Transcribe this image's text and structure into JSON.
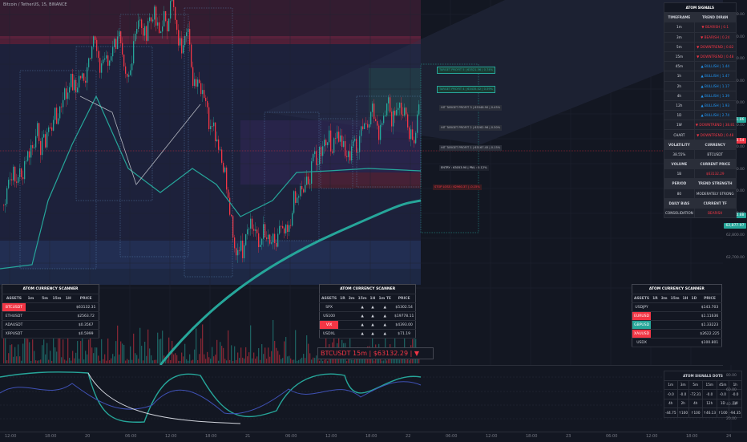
{
  "header": {
    "symbol_title": "Bitcoin / TetherUS, 15, BINANCE"
  },
  "price_axis": {
    "ticks": [
      "63,800.00",
      "63,700.00",
      "63,600.00",
      "63,500.00",
      "63,400.00",
      "63,300.00",
      "63,200.00",
      "63,100.00",
      "63,000.00",
      "62,900.00",
      "62,800.00",
      "62,700.00"
    ],
    "badges": [
      {
        "label": "63,451.86",
        "color": "#26a69a"
      },
      {
        "label": "63,240.54",
        "color": "#f23645"
      },
      {
        "label": "63,100.88",
        "color": "#26a69a"
      },
      {
        "label": "62,877.97",
        "color": "#26a69a"
      }
    ],
    "osc_ticks": [
      "80.00",
      "60.00",
      "40.00",
      "20.00"
    ]
  },
  "time_axis": {
    "ticks": [
      "12:00",
      "18:00",
      "20",
      "06:00",
      "12:00",
      "18:00",
      "21",
      "06:00",
      "12:00",
      "18:00",
      "22",
      "06:00",
      "12:00",
      "18:00",
      "23",
      "06:00",
      "12:00",
      "18:00",
      "24"
    ]
  },
  "signals": {
    "title": "ATOM SIGNALS",
    "col_tf": "TIMEFRAME",
    "col_dir": "TREND DIRAN",
    "rows": [
      {
        "tf": "1m",
        "dir": "▼ BEARISH | 0.1",
        "bear": true
      },
      {
        "tf": "3m",
        "dir": "▼ BEARISH | 0.24",
        "bear": true
      },
      {
        "tf": "5m",
        "dir": "▼ DOWNTREND | 0.82",
        "bear": true
      },
      {
        "tf": "15m",
        "dir": "▼ DOWNTREND | 0.48",
        "bear": true
      },
      {
        "tf": "45m",
        "dir": "▲ BULLISH | 1.44",
        "bear": false
      },
      {
        "tf": "1h",
        "dir": "▲ BULLISH | 1.47",
        "bear": false
      },
      {
        "tf": "2h",
        "dir": "▲ BULLISH | 1.17",
        "bear": false
      },
      {
        "tf": "4h",
        "dir": "▲ BULLISH | 1.39",
        "bear": false
      },
      {
        "tf": "12h",
        "dir": "▲ BULLISH | 1.93",
        "bear": false
      },
      {
        "tf": "1D",
        "dir": "▲ BULLISH | 2.74",
        "bear": false
      },
      {
        "tf": "1W",
        "dir": "▼ DOWNTREND | 38.81",
        "bear": true
      },
      {
        "tf": "CHART",
        "dir": "▼ DOWNTREND | 0.48",
        "bear": true
      }
    ],
    "volatility_label": "VOLATILITY",
    "currency_label": "CURRENCY",
    "volatility": "38.55%",
    "currency": "BTCUSDT",
    "volume_label": "VOLUME",
    "current_price_label": "CURRENT PRICE",
    "volume": "1B",
    "current_price": "$63132.29",
    "period_label": "PERIOD",
    "strength_label": "TREND STRENGTH",
    "period": "80",
    "strength": "MODERATELY STRONG",
    "bias_label": "DAILY BIAS",
    "current_tf_label": "CURRENT TF",
    "bias": "CONSOLIDATION",
    "current_tf": "BEARISH"
  },
  "targets": [
    {
      "text": "TARGET PROFIT 5 | 63521.56 | 0.74%",
      "cls": "tgt-g"
    },
    {
      "text": "TARGET PROFIT 4 | 63435.02 | 0.59%",
      "cls": "tgt-g"
    },
    {
      "text": "HIT TARGET PROFIT 3 | 63348.90 | 0.45%",
      "cls": "tgt-s"
    },
    {
      "text": "HIT TARGET PROFIT 2 | 63262.96 | 0.30%",
      "cls": "tgt-s"
    },
    {
      "text": "HIT TARGET PROFIT 1 | 63167.45 | 0.15%",
      "cls": "tgt-s"
    },
    {
      "text": "ENTRY : 63053.90 | PNL : 0.12%",
      "cls": "tgt-e"
    },
    {
      "text": "STOP LOSS : 62960.37 | -0.15%",
      "cls": "tgt-r"
    }
  ],
  "scanner_left": {
    "title": "ATOM CURRENCY SCANNER",
    "cols": [
      "ASSETS",
      "1m",
      "",
      "5m",
      "15m",
      "1H",
      "PRICE"
    ],
    "rows": [
      {
        "asset": "BTCUSDT",
        "c1": "",
        "c2": "",
        "c3": "",
        "c4": "",
        "c5": "",
        "price": "$63132.31",
        "dn": true,
        "red": true
      },
      {
        "asset": "ETHUSDT",
        "c1": "",
        "c2": "",
        "c3": "",
        "c4": "",
        "c5": "",
        "price": "$2563.72",
        "dn": false,
        "red": false
      },
      {
        "asset": "ADAUSDT",
        "c1": "",
        "c2": "",
        "c3": "",
        "c4": "",
        "c5": "",
        "price": "$0.3567",
        "dn": false,
        "red": false
      },
      {
        "asset": "XRPUSDT",
        "c1": "",
        "c2": "",
        "c3": "",
        "c4": "",
        "c5": "",
        "price": "$0.5999",
        "dn": false,
        "red": false
      }
    ]
  },
  "scanner_mid": {
    "title": "ATOM CURRENCY SCANNER",
    "cols": [
      "ASSETS",
      "1R",
      "3m",
      "15m",
      "1H",
      "1m TE",
      "PRICE"
    ],
    "rows": [
      {
        "asset": "SPX",
        "price": "$5302.54",
        "dn": false,
        "red": false,
        "arrow": "▲"
      },
      {
        "asset": "US100",
        "price": "$19778.11",
        "dn": false,
        "red": false,
        "arrow": "▲"
      },
      {
        "asset": "VIX",
        "price": "$4393.00",
        "dn": false,
        "red": true,
        "arrow": "▲"
      },
      {
        "asset": "USDXL",
        "price": "$71.19",
        "dn": false,
        "red": false,
        "arrow": "▲"
      }
    ]
  },
  "scanner_right": {
    "title": "ATOM CURRENCY SCANNER",
    "cols": [
      "ASSETS",
      "1R",
      "3m",
      "15m",
      "1H",
      "1D",
      "PRICE"
    ],
    "rows": [
      {
        "asset": "USDJPY",
        "price": "$143.703",
        "dn": false,
        "cell": "none"
      },
      {
        "asset": "EURUSD",
        "price": "$1.11636",
        "dn": false,
        "cell": "red"
      },
      {
        "asset": "GBPUSD",
        "price": "$1.33223",
        "dn": false,
        "cell": "grn"
      },
      {
        "asset": "XAUUSD",
        "price": "$2622.225",
        "dn": false,
        "cell": "red"
      },
      {
        "asset": "USDX",
        "price": "$100.801",
        "dn": true,
        "cell": "none"
      }
    ]
  },
  "ticker": {
    "text": "BTCUSDT 15m | $63132.29 | ▼"
  },
  "dots": {
    "title": "ATOM SIGNALS DOTS",
    "row1": [
      "1m",
      "3m",
      "5m",
      "15m",
      "45m",
      "1h"
    ],
    "row2": [
      "-0.0",
      "-0.0",
      "-72.31",
      "-0.0",
      "-0.0",
      "-0.0"
    ],
    "row3": [
      "4h",
      "2h",
      "4h",
      "12h",
      "1D",
      "1W"
    ],
    "row4": [
      "-44.75",
      "↑100",
      "↑100",
      "↑46.13",
      "↑100",
      "-94.35"
    ]
  },
  "colors": {
    "bull": "#26a69a",
    "bear": "#f23645",
    "blue": "#2196f3",
    "bg": "#131722"
  },
  "chart_data": {
    "type": "candlestick",
    "title": "Bitcoin / TetherUS, 15, BINANCE",
    "ylim": [
      62650,
      63850
    ],
    "oscillator_levels": [
      20,
      40,
      60,
      80
    ]
  }
}
